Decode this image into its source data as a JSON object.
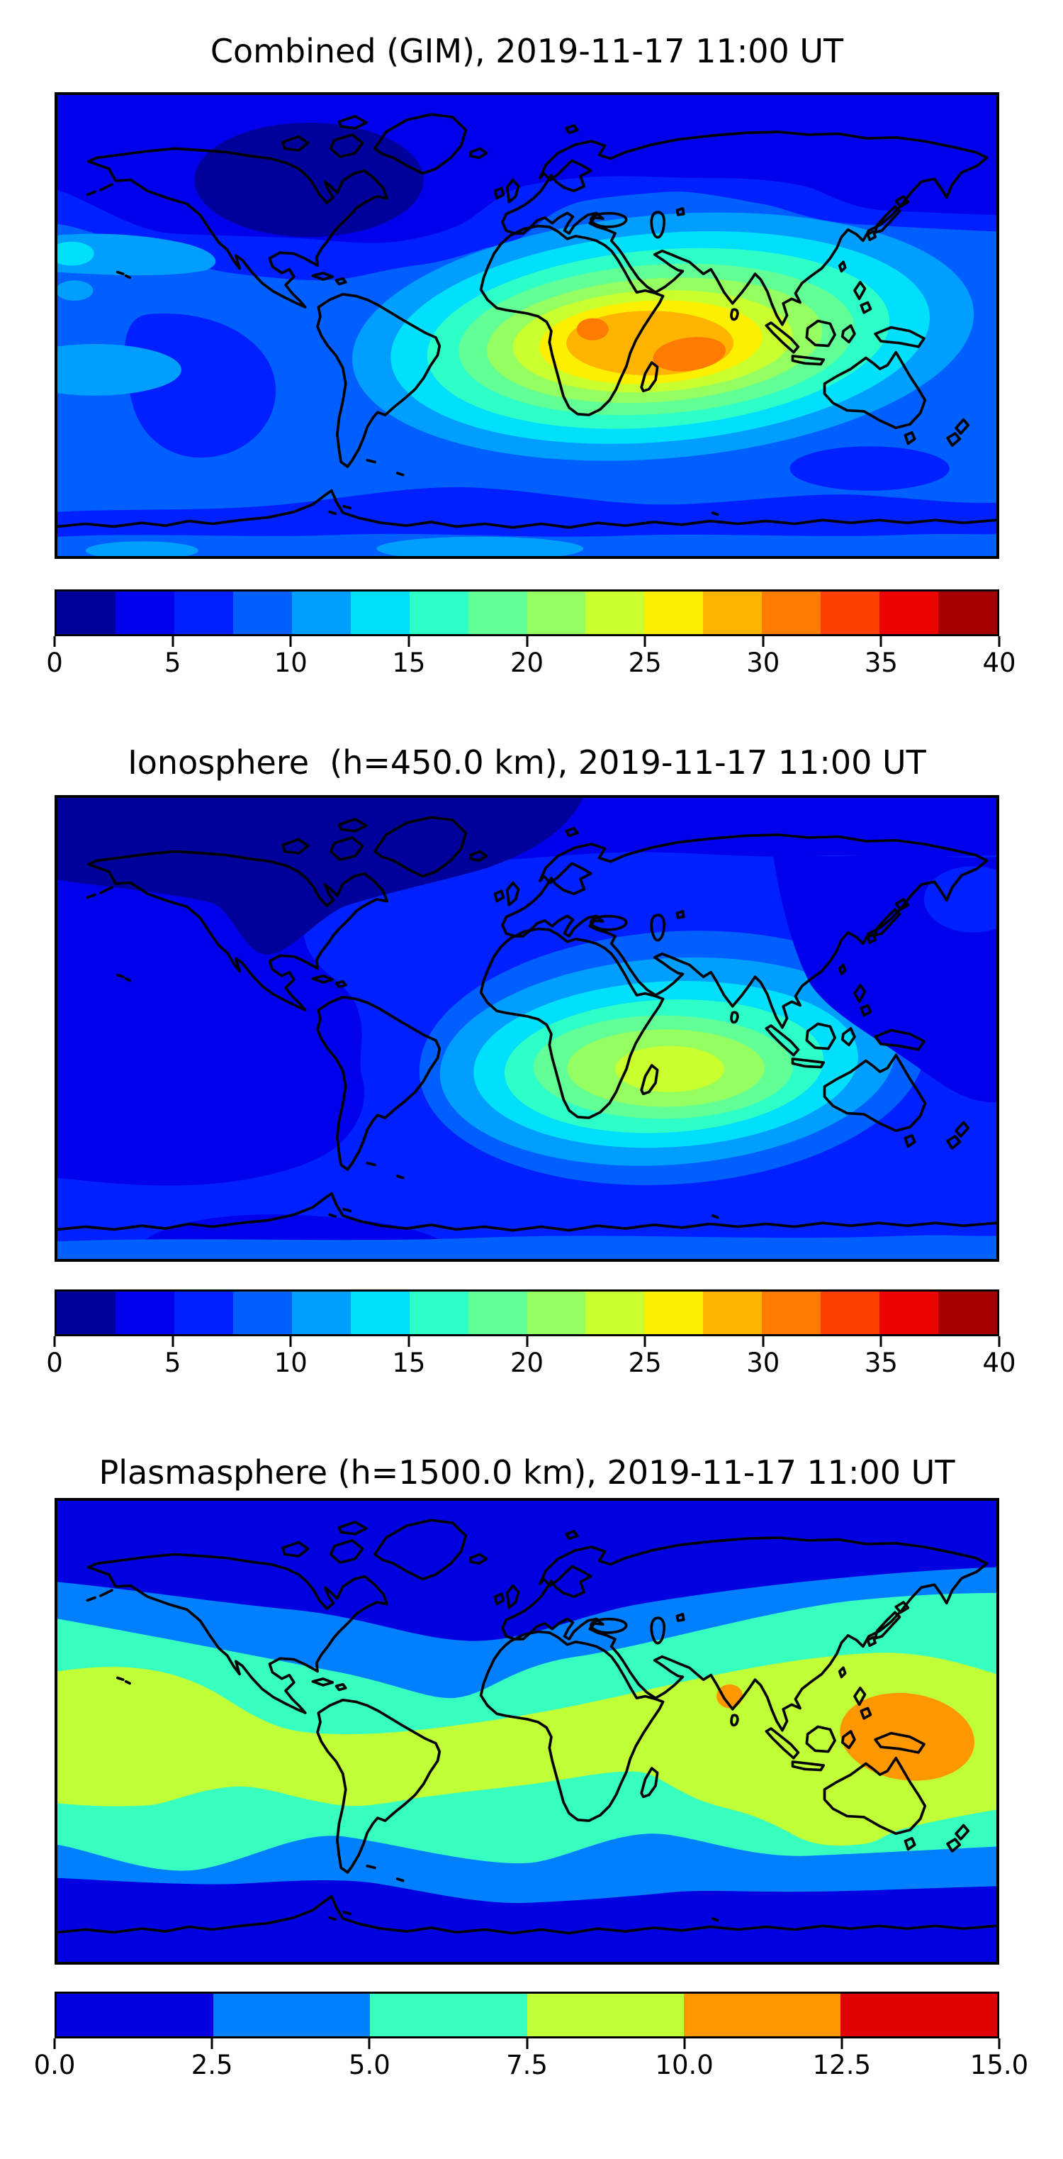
{
  "figure": {
    "background": "#ffffff",
    "coastline_color": "#000000",
    "frame_color": "#000000"
  },
  "palettes": {
    "jet16": [
      "#00009B",
      "#0000EC",
      "#0020FF",
      "#0060FF",
      "#009FFF",
      "#00DFFC",
      "#2EFFC8",
      "#61FF95",
      "#95FF61",
      "#C9FF2E",
      "#FCF000",
      "#FFB500",
      "#FF7A00",
      "#FF3F00",
      "#EC0400",
      "#A40000"
    ],
    "jet6": [
      "#0000E0",
      "#0080FF",
      "#37FFC0",
      "#C0FF37",
      "#FF9700",
      "#E00000"
    ]
  },
  "panels": [
    {
      "id": "combined",
      "title": "Combined (GIM), 2019-11-17 11:00 UT",
      "colorbar": {
        "palette": "jet16",
        "min": 0,
        "max": 40,
        "tick_labels": [
          "0",
          "5",
          "10",
          "15",
          "20",
          "25",
          "30",
          "35",
          "40"
        ]
      }
    },
    {
      "id": "ionosphere",
      "title": "Ionosphere  (h=450.0 km), 2019-11-17 11:00 UT",
      "colorbar": {
        "palette": "jet16",
        "min": 0,
        "max": 40,
        "tick_labels": [
          "0",
          "5",
          "10",
          "15",
          "20",
          "25",
          "30",
          "35",
          "40"
        ]
      }
    },
    {
      "id": "plasmasphere",
      "title": "Plasmasphere (h=1500.0 km), 2019-11-17 11:00 UT",
      "colorbar": {
        "palette": "jet6",
        "min": 0,
        "max": 15,
        "tick_labels": [
          "0.0",
          "2.5",
          "5.0",
          "7.5",
          "10.0",
          "12.5",
          "15.0"
        ]
      }
    }
  ],
  "chart_data": [
    {
      "type": "heatmap",
      "subtype": "filled-contour world map",
      "title": "Combined (GIM), 2019-11-17 11:00 UT",
      "projection": "equirectangular, lon -180..180, lat -90..90",
      "colormap": "jet (discrete)",
      "contour_levels": [
        0,
        2.5,
        5,
        7.5,
        10,
        12.5,
        15,
        17.5,
        20,
        22.5,
        25,
        27.5,
        30,
        32.5,
        35,
        37.5,
        40
      ],
      "colorbar_ticks": [
        0,
        5,
        10,
        15,
        20,
        25,
        30,
        35,
        40
      ],
      "colorbar_position": "bottom horizontal",
      "value_range": [
        0,
        40
      ],
      "coastlines": true,
      "field_summary": {
        "peaks": [
          {
            "lon": 22,
            "lat": 2,
            "approx_value": 31
          },
          {
            "lon": 62,
            "lat": -11,
            "approx_value": 32
          }
        ],
        "hotspot_extent": "elongated maximum from West Africa across the Indian Ocean to Indonesia (approx lon -10..120, lat 25..-35), ringed by 27.5,25,22.5,20,17.5,15,12.5,10 contours",
        "minima": "polar caps, lowest (0-2.5) over Canadian Arctic; NH high latitudes 2.5-5; mid-ocean background 7.5-10",
        "secondary": "lighter 10-12.5 patches in equatorial east Pacific at map left edge"
      }
    },
    {
      "type": "heatmap",
      "subtype": "filled-contour world map",
      "title": "Ionosphere  (h=450.0 km), 2019-11-17 11:00 UT",
      "projection": "equirectangular, lon -180..180, lat -90..90",
      "colormap": "jet (discrete)",
      "contour_levels": [
        0,
        2.5,
        5,
        7.5,
        10,
        12.5,
        15,
        17.5,
        20,
        22.5,
        25,
        27.5,
        30,
        32.5,
        35,
        37.5,
        40
      ],
      "colorbar_ticks": [
        0,
        5,
        10,
        15,
        20,
        25,
        30,
        35,
        40
      ],
      "colorbar_position": "bottom horizontal",
      "value_range": [
        0,
        40
      ],
      "coastlines": true,
      "field_summary": {
        "peaks": [
          {
            "lon": 54,
            "lat": -15,
            "approx_value": 24
          }
        ],
        "hotspot_extent": "single maximum over Africa / western Indian Ocean near Madagascar, rings down to 7.5 spanning approx lon -20..130, lat 35..-50",
        "minima": "large 2.5-5 region over whole North Pacific and NW Pacific near Japan; 0-2.5 over NW North America and Arctic",
        "secondary": "background oceans 5-7.5"
      }
    },
    {
      "type": "heatmap",
      "subtype": "filled-contour world map",
      "title": "Plasmasphere (h=1500.0 km), 2019-11-17 11:00 UT",
      "projection": "equirectangular, lon -180..180, lat -90..90",
      "colormap": "jet (discrete)",
      "contour_levels": [
        0,
        2.5,
        5,
        7.5,
        10,
        12.5,
        15
      ],
      "colorbar_ticks": [
        0,
        2.5,
        5,
        7.5,
        10,
        12.5,
        15
      ],
      "colorbar_position": "bottom horizontal",
      "value_range": [
        0,
        15
      ],
      "coastlines": true,
      "field_summary": {
        "structure": "zonal banded field: 0-2.5 polar bands, 2.5-5 subpolar bands, 5-7.5 mid-latitude bands, 7.5-10 broad equatorial band",
        "peaks": [
          {
            "lon": 77,
            "lat": 14,
            "approx_value": 11,
            "note": "small 10-12.5 spot over western India"
          },
          {
            "lon": 138,
            "lat": -3,
            "approx_value": 11.5,
            "note": "large 10-12.5 region over Indonesia / New Guinea / west Pacific"
          }
        ]
      }
    }
  ]
}
